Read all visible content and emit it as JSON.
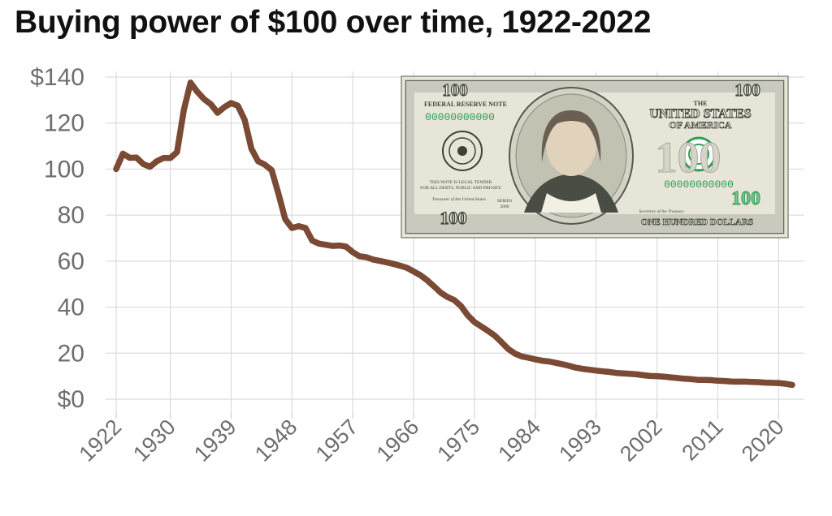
{
  "chart_data": {
    "type": "line",
    "title": "Buying power of $100 over time, 1922-2022",
    "xlabel": "",
    "ylabel": "",
    "xlim": [
      1922,
      2022
    ],
    "ylim": [
      0,
      140
    ],
    "y_ticks": [
      0,
      20,
      40,
      60,
      80,
      100,
      120,
      140
    ],
    "y_tick_labels": [
      "$0",
      "20",
      "40",
      "60",
      "80",
      "100",
      "120",
      "$140"
    ],
    "x_ticks": [
      1922,
      1930,
      1939,
      1948,
      1957,
      1966,
      1975,
      1984,
      1993,
      2002,
      2011,
      2020
    ],
    "x_tick_labels": [
      "1922",
      "1930",
      "1939",
      "1948",
      "1957",
      "1966",
      "1975",
      "1984",
      "1993",
      "2002",
      "2011",
      "2020"
    ],
    "grid": true,
    "legend": "none",
    "line_color": "#7a4a34",
    "series": [
      {
        "x": [
          1922,
          1923,
          1924,
          1925,
          1926,
          1927,
          1928,
          1929,
          1930,
          1931,
          1932,
          1933,
          1934,
          1935,
          1936,
          1937,
          1938,
          1939,
          1940,
          1941,
          1942,
          1943,
          1944,
          1945,
          1946,
          1947,
          1948,
          1949,
          1950,
          1951,
          1952,
          1953,
          1954,
          1955,
          1956,
          1957,
          1958,
          1959,
          1960,
          1961,
          1962,
          1963,
          1964,
          1965,
          1966,
          1967,
          1968,
          1969,
          1970,
          1971,
          1972,
          1973,
          1974,
          1975,
          1976,
          1977,
          1978,
          1979,
          1980,
          1981,
          1982,
          1983,
          1984,
          1985,
          1986,
          1987,
          1988,
          1989,
          1990,
          1991,
          1992,
          1993,
          1994,
          1995,
          1996,
          1997,
          1998,
          1999,
          2000,
          2001,
          2002,
          2003,
          2004,
          2005,
          2006,
          2007,
          2008,
          2009,
          2010,
          2011,
          2012,
          2013,
          2014,
          2015,
          2016,
          2017,
          2018,
          2019,
          2020,
          2021,
          2022
        ],
        "values": [
          100,
          106.7,
          104.9,
          105,
          102.2,
          101,
          103.4,
          104.8,
          104.8,
          107.4,
          125.6,
          137.6,
          133.6,
          130.4,
          128.2,
          124.5,
          126.9,
          128.7,
          127.5,
          121.4,
          108.9,
          103.4,
          101.9,
          99.5,
          89.3,
          78.3,
          74.4,
          75.2,
          74.4,
          68.9,
          67.6,
          67.1,
          66.6,
          66.8,
          66.3,
          63.9,
          62.1,
          61.7,
          60.7,
          60.1,
          59.5,
          58.8,
          58,
          57.1,
          55.5,
          53.9,
          51.7,
          49.1,
          46.3,
          44.4,
          43.1,
          40.5,
          36.5,
          33.5,
          31.6,
          29.7,
          27.6,
          24.8,
          21.8,
          19.8,
          18.6,
          18,
          17.3,
          16.7,
          16.4,
          15.8,
          15.2,
          14.5,
          13.7,
          13.2,
          12.8,
          12.4,
          12.1,
          11.8,
          11.4,
          11.2,
          11,
          10.8,
          10.4,
          10.1,
          10,
          9.8,
          9.5,
          9.2,
          8.9,
          8.7,
          8.4,
          8.4,
          8.3,
          8,
          7.9,
          7.7,
          7.6,
          7.6,
          7.5,
          7.4,
          7.2,
          7.1,
          7,
          6.7,
          6.2
        ]
      }
    ]
  },
  "bill_image": {
    "icon": "hundred-dollar-bill-icon",
    "top_left_denomination": "100",
    "top_right_denomination": "100",
    "bank_label": "FEDERAL RESERVE NOTE",
    "serial_top": "00000000000",
    "serial_bottom": "00000000000",
    "country_line_1": "THE",
    "country_line_2": "UNITED STATES",
    "country_line_3": "OF AMERICA",
    "center_numeral": "100",
    "legal_tender_line_1": "THIS NOTE IS LEGAL TENDER",
    "legal_tender_line_2": "FOR ALL DEBTS, PUBLIC AND PRIVATE",
    "series_label": "SERIES",
    "series_year": "2006",
    "treasurer_label": "Treasurer of the United States",
    "secretary_label": "Secretary of the Treasury",
    "bottom_left_denomination": "100",
    "bottom_right_denomination": "100",
    "denomination_words": "ONE HUNDRED DOLLARS",
    "accent_green": "#2f9e56",
    "paper_color": "#e9e8dc",
    "ink_color": "#3d4236"
  }
}
